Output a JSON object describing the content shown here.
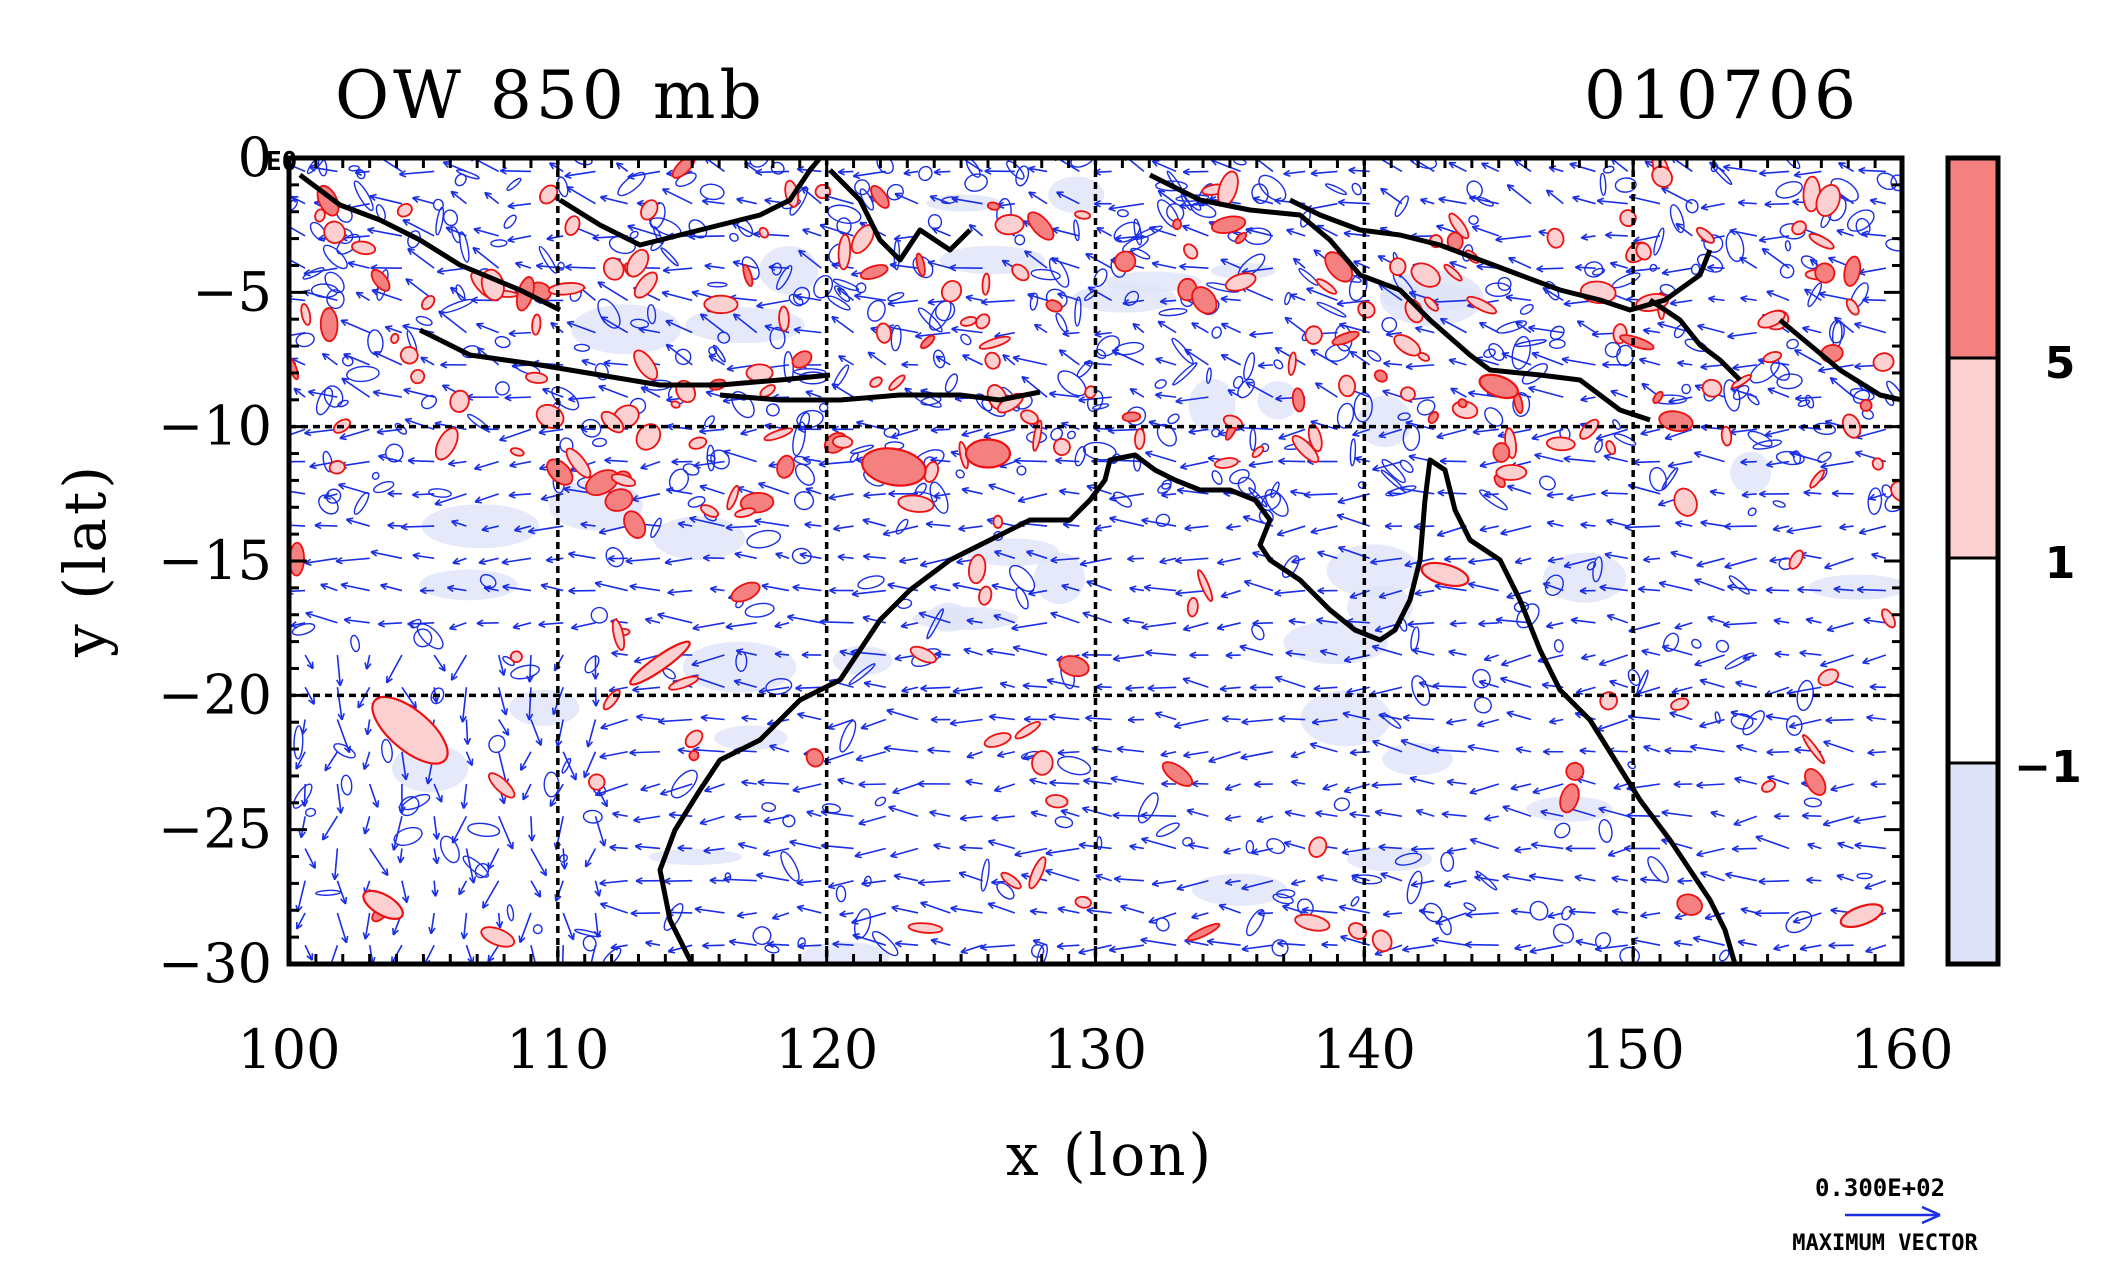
{
  "chart_data": {
    "type": "heatmap",
    "title_left": "OW 850 mb",
    "title_right": "010706",
    "corner_label": "E0",
    "xlabel": "x (lon)",
    "ylabel": "y (lat)",
    "xlim": [
      100,
      160
    ],
    "ylim": [
      -30,
      0
    ],
    "x_ticks": [
      "100",
      "110",
      "120",
      "130",
      "140",
      "150",
      "160"
    ],
    "y_ticks": [
      "0",
      "−5",
      "−10",
      "−15",
      "−20",
      "−25",
      "−30"
    ],
    "x_tick_values": [
      100,
      110,
      120,
      130,
      140,
      150,
      160
    ],
    "y_tick_values": [
      0,
      -5,
      -10,
      -15,
      -20,
      -25,
      -30
    ],
    "gridlines_x": [
      110,
      120,
      130,
      140,
      150
    ],
    "gridlines_y": [
      -10,
      -20
    ],
    "colorbar": {
      "levels": [
        "5",
        "1",
        "−1"
      ],
      "level_values": [
        5,
        1,
        -1
      ],
      "colors": [
        "#f48080",
        "#fcd0d0",
        "#ffffff",
        "#dfe3f8"
      ]
    },
    "vector_reference": {
      "value": "0.300E+02",
      "label": "MAXIMUM VECTOR"
    },
    "colors": {
      "positive_contour": "#ee1111",
      "negative_contour": "#1a2ee6",
      "vectors": "#1a2ee6",
      "coastline": "#000000"
    }
  }
}
